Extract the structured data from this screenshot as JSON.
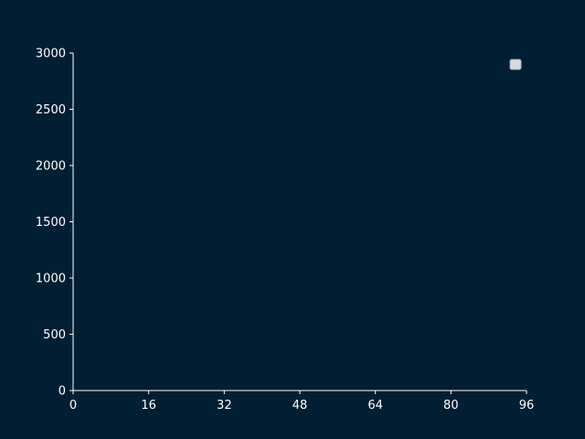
{
  "chart_data": {
    "type": "line",
    "title": "",
    "xlabel": "",
    "ylabel": "",
    "xlim": [
      0,
      96
    ],
    "ylim": [
      0,
      3000
    ],
    "x_ticks": [
      "0",
      "16",
      "32",
      "48",
      "64",
      "80",
      "96"
    ],
    "y_ticks": [
      "0",
      "500",
      "1000",
      "1500",
      "2000",
      "2500",
      "3000"
    ],
    "series": [],
    "grid": false,
    "legend": {
      "placement": "top-right",
      "entries": []
    }
  },
  "colors": {
    "background": "#001f33",
    "axis": "#ffffff",
    "text": "#ffffff",
    "legend_box": "#d9d9d9"
  }
}
